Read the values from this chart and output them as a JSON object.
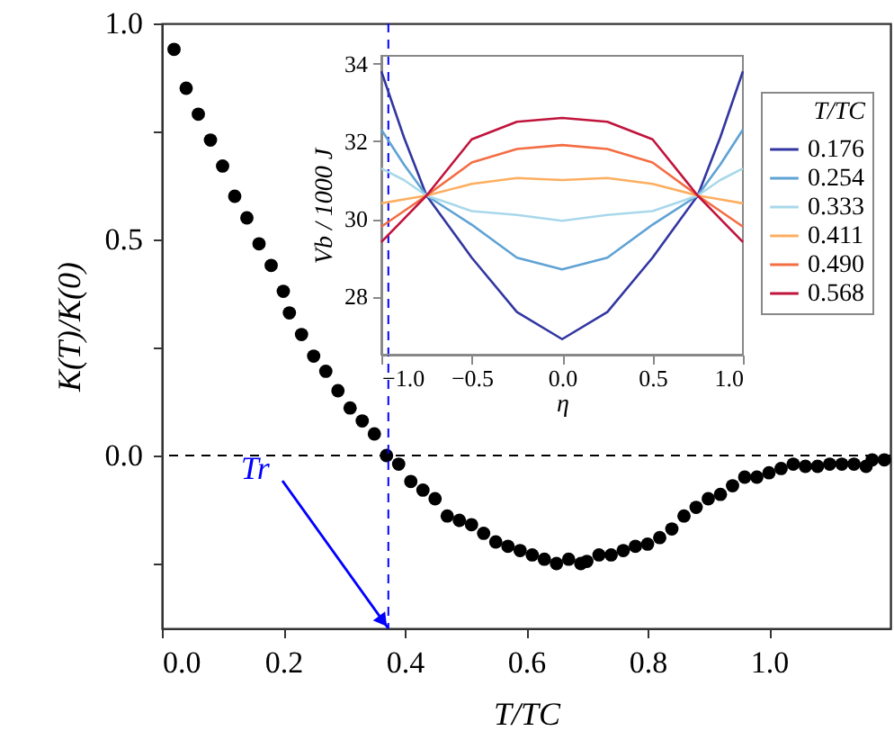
{
  "chart_data": [
    {
      "type": "scatter",
      "xlabel": "T/TC",
      "ylabel": "K(T)/K(0)",
      "marker": "circle",
      "grid": false,
      "legend": false,
      "xlim": [
        0,
        1.2
      ],
      "ylim": [
        -0.4,
        1.0
      ],
      "xticks": [
        {
          "value": 0,
          "label": "0.0"
        },
        0.2,
        0.4,
        0.6,
        0.8,
        {
          "value": 1,
          "label": "1.0"
        }
      ],
      "yticks": [
        {
          "value": -0.25,
          "label": null
        },
        {
          "value": 0,
          "label": "0.0"
        },
        {
          "value": 0.25,
          "label": null
        },
        0.5,
        {
          "value": 0.75,
          "label": null
        },
        {
          "value": 1,
          "label": "1.0"
        }
      ],
      "x": [
        0.02,
        0.04,
        0.06,
        0.08,
        0.1,
        0.12,
        0.14,
        0.16,
        0.18,
        0.2,
        0.21,
        0.23,
        0.25,
        0.27,
        0.29,
        0.31,
        0.33,
        0.35,
        0.37,
        0.39,
        0.41,
        0.43,
        0.45,
        0.47,
        0.49,
        0.51,
        0.53,
        0.55,
        0.57,
        0.59,
        0.61,
        0.63,
        0.65,
        0.67,
        0.69,
        0.7,
        0.72,
        0.74,
        0.76,
        0.78,
        0.8,
        0.82,
        0.84,
        0.86,
        0.88,
        0.9,
        0.92,
        0.94,
        0.96,
        0.98,
        1.0,
        1.02,
        1.04,
        1.06,
        1.08,
        1.1,
        1.12,
        1.14,
        1.16,
        1.17,
        1.19
      ],
      "series": [
        {
          "color": "#000000",
          "values": [
            0.94,
            0.85,
            0.79,
            0.73,
            0.67,
            0.6,
            0.55,
            0.49,
            0.44,
            0.38,
            0.33,
            0.28,
            0.23,
            0.195,
            0.15,
            0.11,
            0.08,
            0.05,
            0.0,
            -0.02,
            -0.06,
            -0.08,
            -0.1,
            -0.14,
            -0.15,
            -0.16,
            -0.18,
            -0.2,
            -0.21,
            -0.22,
            -0.23,
            -0.24,
            -0.25,
            -0.24,
            -0.25,
            -0.245,
            -0.23,
            -0.23,
            -0.22,
            -0.21,
            -0.205,
            -0.19,
            -0.17,
            -0.14,
            -0.12,
            -0.1,
            -0.09,
            -0.07,
            -0.05,
            -0.05,
            -0.04,
            -0.03,
            -0.02,
            -0.025,
            -0.025,
            -0.02,
            -0.02,
            -0.02,
            -0.025,
            -0.01,
            -0.01
          ]
        }
      ],
      "ref_lines": [
        {
          "axis": "y",
          "value": 0,
          "color": "#000000",
          "line_style": "dashed"
        },
        {
          "axis": "x",
          "value": 0.373,
          "color": "#0000ff",
          "line_style": "dashed"
        }
      ],
      "annotations": [
        {
          "text": "Tr",
          "x": 0.373,
          "y": -0.4
        }
      ]
    },
    {
      "type": "line",
      "xlabel": "η",
      "ylabel": "Vb / 1000 J",
      "legend_title": "T/TC",
      "legend": "right",
      "grid": false,
      "xlim": [
        -1,
        1
      ],
      "ylim": [
        26.5,
        34.2
      ],
      "xticks": [
        {
          "value": -1,
          "label": "−1.0"
        },
        {
          "value": -0.5,
          "label": "−0.5"
        },
        {
          "value": 0,
          "label": "0.0"
        },
        0.5,
        {
          "value": 1,
          "label": "1.0"
        }
      ],
      "yticks": [
        28,
        30,
        32,
        34
      ],
      "x": [
        -1,
        -0.875,
        -0.75,
        -0.5,
        -0.25,
        0,
        0.25,
        0.5,
        0.75,
        0.875,
        1
      ],
      "series": [
        {
          "name": "0.176",
          "color": "#3236a0",
          "values": [
            33.8,
            32.1,
            30.6,
            29.0,
            27.6,
            26.9,
            27.6,
            29.0,
            30.6,
            32.1,
            33.8
          ]
        },
        {
          "name": "0.254",
          "color": "#5fa2d4",
          "values": [
            32.3,
            31.4,
            30.6,
            29.85,
            29.0,
            28.7,
            29.0,
            29.85,
            30.6,
            31.4,
            32.3
          ]
        },
        {
          "name": "0.333",
          "color": "#a9d8ea",
          "values": [
            31.3,
            31.0,
            30.6,
            30.2,
            30.1,
            29.95,
            30.1,
            30.2,
            30.6,
            31.0,
            31.3
          ]
        },
        {
          "name": "0.411",
          "color": "#fdae61",
          "values": [
            30.4,
            30.5,
            30.6,
            30.9,
            31.05,
            31.0,
            31.05,
            30.9,
            30.6,
            30.5,
            30.4
          ]
        },
        {
          "name": "0.490",
          "color": "#f46d43",
          "values": [
            29.8,
            30.2,
            30.6,
            31.45,
            31.8,
            31.9,
            31.8,
            31.45,
            30.6,
            30.2,
            29.8
          ]
        },
        {
          "name": "0.568",
          "color": "#c0143c",
          "values": [
            29.4,
            30.0,
            30.6,
            32.05,
            32.5,
            32.6,
            32.5,
            32.05,
            30.6,
            30.0,
            29.4
          ]
        }
      ]
    }
  ]
}
